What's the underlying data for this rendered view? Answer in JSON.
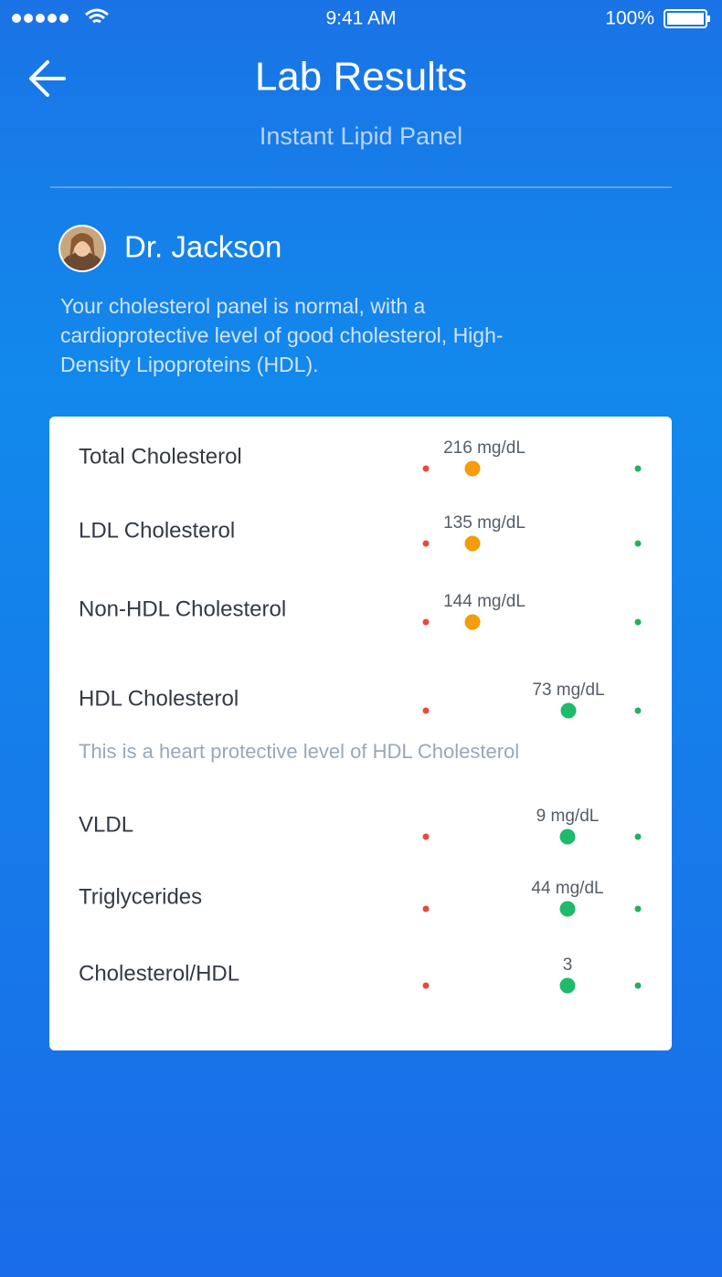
{
  "status_bar": {
    "time": "9:41 AM",
    "battery": "100%"
  },
  "header": {
    "title": "Lab Results",
    "subtitle": "Instant Lipid Panel"
  },
  "doctor": {
    "name": "Dr. Jackson",
    "message": [
      "Your cholesterol panel is normal, with a",
      "cardioprotective level of good cholesterol, High-",
      "Density Lipoproteins (HDL)."
    ]
  },
  "results": {
    "rows": [
      {
        "name": "Total Cholesterol",
        "value": "216 mg/dL"
      },
      {
        "name": "LDL Cholesterol",
        "value": "135 mg/dL"
      },
      {
        "name": "Non-HDL Cholesterol",
        "value": "144 mg/dL"
      },
      {
        "name": "HDL Cholesterol",
        "value": "73 mg/dL"
      },
      {
        "name": "VLDL",
        "value": "9 mg/dL"
      },
      {
        "name": "Triglycerides",
        "value": "44 mg/dL"
      },
      {
        "name": "Cholesterol/HDL",
        "value": "3"
      }
    ],
    "note": "This is a heart protective level of HDL Cholesterol"
  }
}
